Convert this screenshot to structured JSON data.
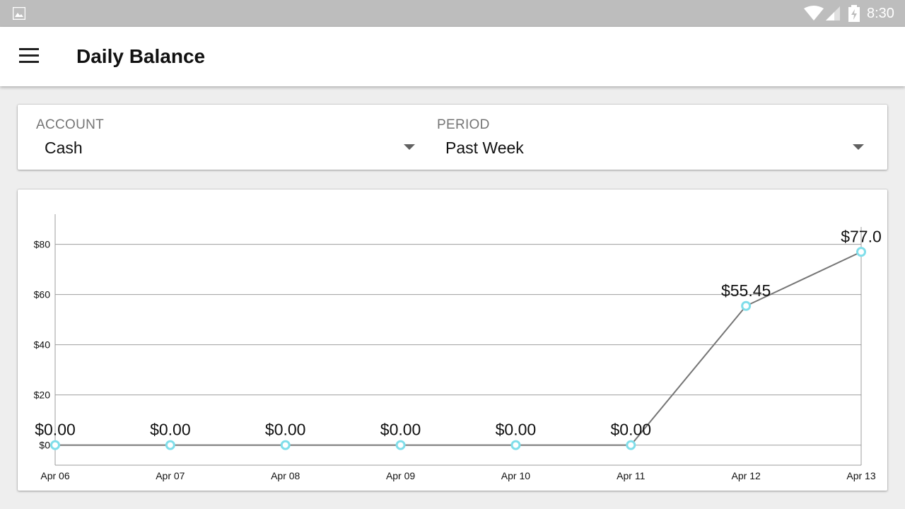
{
  "status_bar": {
    "time": "8:30",
    "icons": [
      "image-notification-icon",
      "wifi-icon",
      "signal-icon",
      "battery-charging-icon"
    ]
  },
  "app_bar": {
    "menu_icon": "hamburger-menu-icon",
    "title": "Daily Balance"
  },
  "filters": {
    "account": {
      "label": "ACCOUNT",
      "value": "Cash"
    },
    "period": {
      "label": "PERIOD",
      "value": "Past Week"
    }
  },
  "colors": {
    "status_bar": "#bdbdbd",
    "line": "#757575",
    "marker": "#80deea",
    "grid": "#9e9e9e"
  },
  "chart_data": {
    "type": "line",
    "categories": [
      "Apr 06",
      "Apr 07",
      "Apr 08",
      "Apr 09",
      "Apr 10",
      "Apr 11",
      "Apr 12",
      "Apr 13"
    ],
    "series": [
      {
        "values": [
          0,
          0,
          0,
          0,
          0,
          0,
          55.45,
          77.0
        ],
        "data_labels": [
          "$0.00",
          "$0.00",
          "$0.00",
          "$0.00",
          "$0.00",
          "$0.00",
          "$55.45",
          "$77.0"
        ]
      }
    ],
    "y_ticks": [
      0,
      20,
      40,
      60,
      80
    ],
    "y_tick_labels": [
      "$0",
      "$20",
      "$40",
      "$60",
      "$80"
    ],
    "ylim": [
      -8,
      92
    ],
    "grid": "horizontal",
    "legend": "none"
  }
}
